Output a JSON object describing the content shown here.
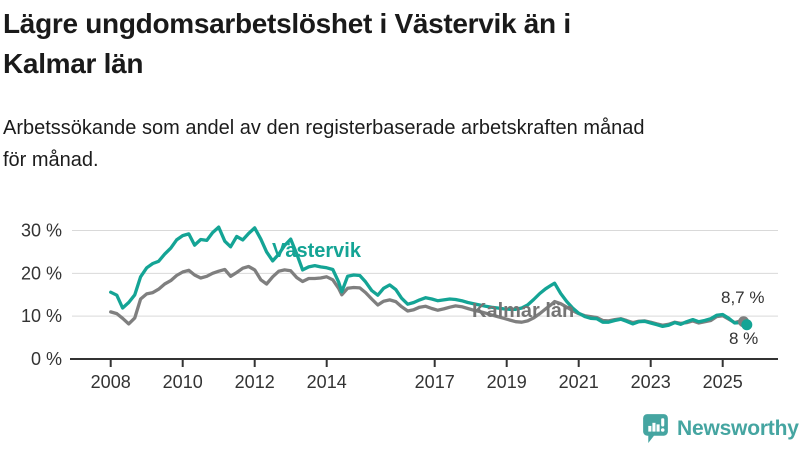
{
  "header": {
    "title_line1": "Lägre ungdomsarbetslöshet i Västervik än i",
    "title_line2": "Kalmar län",
    "subtitle_line1": "Arbetssökande som andel av den registerbaserade arbetskraften månad",
    "subtitle_line2": "för månad."
  },
  "labels": {
    "vastervik_series": "Västervik",
    "kalmar_series": "Kalmar län",
    "end_value_kalmar": "8,7 %",
    "end_value_vastervik": "8 %"
  },
  "branding": {
    "logo_text": "Newsworthy",
    "logo_icon": "bar-chart-speech-bubble-icon",
    "logo_color": "#45A5A1"
  },
  "colors": {
    "vastervik": "#14A495",
    "kalmar": "#7F7F7F",
    "grid": "#D9D9D9",
    "axis": "#333333",
    "tick_text": "#333333"
  },
  "chart_data": {
    "type": "line",
    "title": "Lägre ungdomsarbetslöshet i Västervik än i Kalmar län",
    "xlabel": "",
    "ylabel": "",
    "y_unit": "percent",
    "x_unit": "decimal_year",
    "grid": "horizontal",
    "legend_position": "inline-labels",
    "ylim": [
      0,
      32
    ],
    "xlim": [
      2006.9,
      2026.5
    ],
    "y_ticks": [
      {
        "value": 0,
        "label": "0 %"
      },
      {
        "value": 10,
        "label": "10 %"
      },
      {
        "value": 20,
        "label": "20 %"
      },
      {
        "value": 30,
        "label": "30 %"
      }
    ],
    "x_ticks": [
      2008,
      2010,
      2012,
      2014,
      2017,
      2019,
      2021,
      2023,
      2025
    ],
    "series": [
      {
        "name": "Kalmar län",
        "color": "#7F7F7F",
        "end_label": "8,7 %",
        "end_value": 8.7,
        "points": [
          [
            2008.0,
            11.0
          ],
          [
            2008.17,
            10.6
          ],
          [
            2008.33,
            9.5
          ],
          [
            2008.5,
            8.2
          ],
          [
            2008.67,
            9.6
          ],
          [
            2008.83,
            14.0
          ],
          [
            2009.0,
            15.2
          ],
          [
            2009.17,
            15.5
          ],
          [
            2009.33,
            16.3
          ],
          [
            2009.5,
            17.5
          ],
          [
            2009.67,
            18.3
          ],
          [
            2009.83,
            19.5
          ],
          [
            2010.0,
            20.3
          ],
          [
            2010.17,
            20.7
          ],
          [
            2010.33,
            19.6
          ],
          [
            2010.5,
            18.9
          ],
          [
            2010.67,
            19.3
          ],
          [
            2010.83,
            20.0
          ],
          [
            2011.0,
            20.5
          ],
          [
            2011.17,
            20.9
          ],
          [
            2011.33,
            19.3
          ],
          [
            2011.5,
            20.2
          ],
          [
            2011.67,
            21.2
          ],
          [
            2011.83,
            21.6
          ],
          [
            2012.0,
            20.8
          ],
          [
            2012.17,
            18.5
          ],
          [
            2012.33,
            17.5
          ],
          [
            2012.5,
            19.2
          ],
          [
            2012.67,
            20.5
          ],
          [
            2012.83,
            20.8
          ],
          [
            2013.0,
            20.6
          ],
          [
            2013.17,
            19.0
          ],
          [
            2013.33,
            18.1
          ],
          [
            2013.5,
            18.8
          ],
          [
            2013.67,
            18.8
          ],
          [
            2013.83,
            18.9
          ],
          [
            2014.0,
            19.2
          ],
          [
            2014.17,
            18.5
          ],
          [
            2014.33,
            16.5
          ],
          [
            2014.42,
            15.0
          ],
          [
            2014.58,
            16.5
          ],
          [
            2014.75,
            16.7
          ],
          [
            2014.92,
            16.6
          ],
          [
            2015.08,
            15.5
          ],
          [
            2015.25,
            14.0
          ],
          [
            2015.42,
            12.6
          ],
          [
            2015.58,
            13.5
          ],
          [
            2015.75,
            13.8
          ],
          [
            2015.92,
            13.4
          ],
          [
            2016.08,
            12.2
          ],
          [
            2016.25,
            11.2
          ],
          [
            2016.42,
            11.5
          ],
          [
            2016.58,
            12.1
          ],
          [
            2016.75,
            12.3
          ],
          [
            2016.92,
            11.8
          ],
          [
            2017.08,
            11.4
          ],
          [
            2017.25,
            11.7
          ],
          [
            2017.42,
            12.1
          ],
          [
            2017.58,
            12.4
          ],
          [
            2017.75,
            12.2
          ],
          [
            2017.92,
            11.8
          ],
          [
            2018.08,
            11.4
          ],
          [
            2018.25,
            11.1
          ],
          [
            2018.42,
            10.7
          ],
          [
            2018.58,
            10.3
          ],
          [
            2018.75,
            9.9
          ],
          [
            2018.92,
            9.5
          ],
          [
            2019.08,
            9.1
          ],
          [
            2019.25,
            8.7
          ],
          [
            2019.42,
            8.6
          ],
          [
            2019.58,
            8.9
          ],
          [
            2019.75,
            9.6
          ],
          [
            2019.92,
            10.6
          ],
          [
            2020.08,
            11.7
          ],
          [
            2020.25,
            12.8
          ],
          [
            2020.33,
            13.4
          ],
          [
            2020.5,
            12.9
          ],
          [
            2020.67,
            12.1
          ],
          [
            2020.83,
            11.3
          ],
          [
            2021.0,
            10.6
          ],
          [
            2021.17,
            10.1
          ],
          [
            2021.33,
            9.9
          ],
          [
            2021.5,
            9.7
          ],
          [
            2021.67,
            9.0
          ],
          [
            2021.83,
            8.9
          ],
          [
            2022.0,
            9.2
          ],
          [
            2022.17,
            9.4
          ],
          [
            2022.33,
            9.0
          ],
          [
            2022.5,
            8.5
          ],
          [
            2022.67,
            8.8
          ],
          [
            2022.83,
            8.9
          ],
          [
            2023.0,
            8.6
          ],
          [
            2023.17,
            8.2
          ],
          [
            2023.33,
            7.9
          ],
          [
            2023.5,
            8.1
          ],
          [
            2023.67,
            8.6
          ],
          [
            2023.83,
            8.3
          ],
          [
            2024.0,
            8.5
          ],
          [
            2024.17,
            8.9
          ],
          [
            2024.33,
            8.4
          ],
          [
            2024.5,
            8.7
          ],
          [
            2024.67,
            9.0
          ],
          [
            2024.83,
            9.9
          ],
          [
            2025.0,
            10.1
          ],
          [
            2025.17,
            9.3
          ],
          [
            2025.33,
            8.5
          ],
          [
            2025.5,
            8.9
          ],
          [
            2025.58,
            8.7
          ]
        ]
      },
      {
        "name": "Västervik",
        "color": "#14A495",
        "end_label": "8 %",
        "end_value": 8.0,
        "points": [
          [
            2008.0,
            15.6
          ],
          [
            2008.17,
            14.9
          ],
          [
            2008.33,
            11.9
          ],
          [
            2008.5,
            13.2
          ],
          [
            2008.67,
            15.0
          ],
          [
            2008.83,
            19.2
          ],
          [
            2009.0,
            21.3
          ],
          [
            2009.17,
            22.3
          ],
          [
            2009.33,
            22.8
          ],
          [
            2009.5,
            24.5
          ],
          [
            2009.67,
            25.9
          ],
          [
            2009.83,
            27.8
          ],
          [
            2010.0,
            28.8
          ],
          [
            2010.17,
            29.2
          ],
          [
            2010.33,
            26.6
          ],
          [
            2010.5,
            27.9
          ],
          [
            2010.67,
            27.7
          ],
          [
            2010.83,
            29.5
          ],
          [
            2011.0,
            30.8
          ],
          [
            2011.17,
            27.5
          ],
          [
            2011.33,
            26.2
          ],
          [
            2011.5,
            28.6
          ],
          [
            2011.67,
            27.8
          ],
          [
            2011.83,
            29.3
          ],
          [
            2012.0,
            30.6
          ],
          [
            2012.17,
            28.0
          ],
          [
            2012.33,
            25.0
          ],
          [
            2012.5,
            22.9
          ],
          [
            2012.67,
            24.5
          ],
          [
            2012.83,
            26.5
          ],
          [
            2013.0,
            28.0
          ],
          [
            2013.17,
            24.5
          ],
          [
            2013.33,
            20.8
          ],
          [
            2013.5,
            21.5
          ],
          [
            2013.67,
            21.8
          ],
          [
            2013.83,
            21.5
          ],
          [
            2014.0,
            21.3
          ],
          [
            2014.17,
            20.9
          ],
          [
            2014.33,
            18.0
          ],
          [
            2014.42,
            15.7
          ],
          [
            2014.58,
            19.3
          ],
          [
            2014.75,
            19.6
          ],
          [
            2014.92,
            19.5
          ],
          [
            2015.08,
            18.0
          ],
          [
            2015.25,
            16.0
          ],
          [
            2015.42,
            14.9
          ],
          [
            2015.58,
            16.5
          ],
          [
            2015.75,
            17.3
          ],
          [
            2015.92,
            16.2
          ],
          [
            2016.08,
            14.2
          ],
          [
            2016.25,
            12.8
          ],
          [
            2016.42,
            13.2
          ],
          [
            2016.58,
            13.8
          ],
          [
            2016.75,
            14.3
          ],
          [
            2016.92,
            14.0
          ],
          [
            2017.08,
            13.6
          ],
          [
            2017.25,
            13.8
          ],
          [
            2017.42,
            14.0
          ],
          [
            2017.58,
            13.9
          ],
          [
            2017.75,
            13.6
          ],
          [
            2017.92,
            13.2
          ],
          [
            2018.08,
            12.9
          ],
          [
            2018.25,
            12.6
          ],
          [
            2018.42,
            12.3
          ],
          [
            2018.58,
            12.1
          ],
          [
            2018.75,
            11.9
          ],
          [
            2018.92,
            11.7
          ],
          [
            2019.08,
            11.6
          ],
          [
            2019.25,
            11.6
          ],
          [
            2019.42,
            11.9
          ],
          [
            2019.58,
            12.6
          ],
          [
            2019.75,
            13.9
          ],
          [
            2019.92,
            15.3
          ],
          [
            2020.08,
            16.4
          ],
          [
            2020.25,
            17.3
          ],
          [
            2020.33,
            17.7
          ],
          [
            2020.5,
            15.3
          ],
          [
            2020.67,
            13.4
          ],
          [
            2020.83,
            11.9
          ],
          [
            2021.0,
            10.7
          ],
          [
            2021.17,
            9.9
          ],
          [
            2021.33,
            9.5
          ],
          [
            2021.5,
            9.4
          ],
          [
            2021.67,
            8.6
          ],
          [
            2021.83,
            8.6
          ],
          [
            2022.0,
            9.0
          ],
          [
            2022.17,
            9.3
          ],
          [
            2022.33,
            8.8
          ],
          [
            2022.5,
            8.2
          ],
          [
            2022.67,
            8.7
          ],
          [
            2022.83,
            8.8
          ],
          [
            2023.0,
            8.4
          ],
          [
            2023.17,
            8.0
          ],
          [
            2023.33,
            7.6
          ],
          [
            2023.5,
            7.9
          ],
          [
            2023.67,
            8.5
          ],
          [
            2023.83,
            8.1
          ],
          [
            2024.0,
            8.7
          ],
          [
            2024.17,
            9.2
          ],
          [
            2024.33,
            8.7
          ],
          [
            2024.5,
            9.0
          ],
          [
            2024.67,
            9.4
          ],
          [
            2024.83,
            10.2
          ],
          [
            2025.0,
            10.4
          ],
          [
            2025.17,
            9.5
          ],
          [
            2025.33,
            8.4
          ],
          [
            2025.5,
            8.5
          ],
          [
            2025.67,
            8.0
          ]
        ]
      }
    ]
  }
}
